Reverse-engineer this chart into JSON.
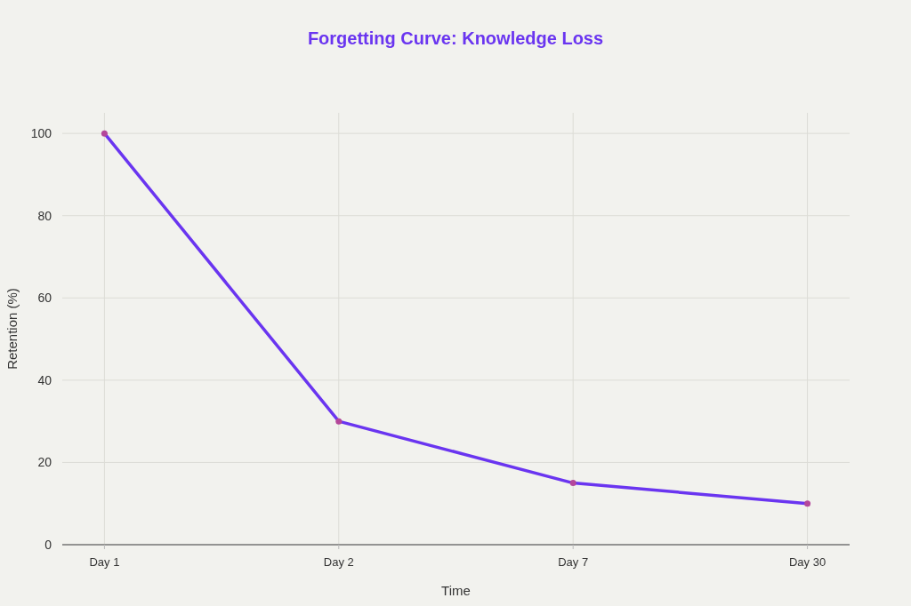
{
  "chart_data": {
    "type": "line",
    "title": "Forgetting Curve: Knowledge Loss",
    "xlabel": "Time",
    "ylabel": "Retention (%)",
    "categories": [
      "Day 1",
      "Day 2",
      "Day 7",
      "Day 30"
    ],
    "series": [
      {
        "color": "#6a35f0",
        "colors": [
          "#b4479a",
          "#b4479a",
          "#b4479a",
          "#b4479a"
        ],
        "values": [
          100,
          30,
          15,
          10
        ]
      }
    ],
    "ylim": [
      0,
      105
    ],
    "yticks": [
      0,
      20,
      40,
      60,
      80,
      100
    ],
    "grid": true,
    "marker": "circle",
    "line_style": "solid"
  }
}
